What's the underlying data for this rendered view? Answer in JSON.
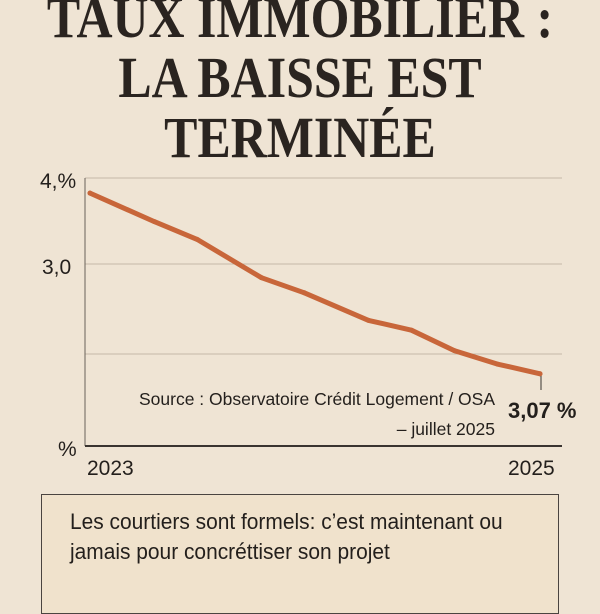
{
  "title_lines": [
    "TAUX IMMOBILIER :",
    "LA BAISSE EST",
    "TERMINÉE"
  ],
  "chart_data": {
    "type": "line",
    "title": "TAUX IMMOBILIER : LA BAISSE EST TERMINÉE",
    "xlabel": "",
    "ylabel": "",
    "y_tick_labels": [
      "4,%",
      "3,0",
      "%"
    ],
    "x_tick_labels": [
      "2023",
      "2025"
    ],
    "xlim": [
      2022.9,
      2025.1
    ],
    "ylim": [
      1,
      4
    ],
    "grid": true,
    "x": [
      2022.9,
      2023.2,
      2023.4,
      2023.7,
      2023.9,
      2024.2,
      2024.4,
      2024.6,
      2024.8,
      2025.0
    ],
    "values": [
      3.83,
      3.51,
      3.31,
      2.88,
      2.71,
      2.4,
      2.29,
      2.06,
      1.91,
      1.8
    ],
    "annotation": "3,07 %",
    "source_line1": "Source : Observatoire Crédit Logement / OSA",
    "source_line2": "– juillet 2025",
    "line_color": "#c8663a"
  },
  "callout": "Les courtiers sont formels: c’est maintenant ou jamais pour concréttiser son projet"
}
